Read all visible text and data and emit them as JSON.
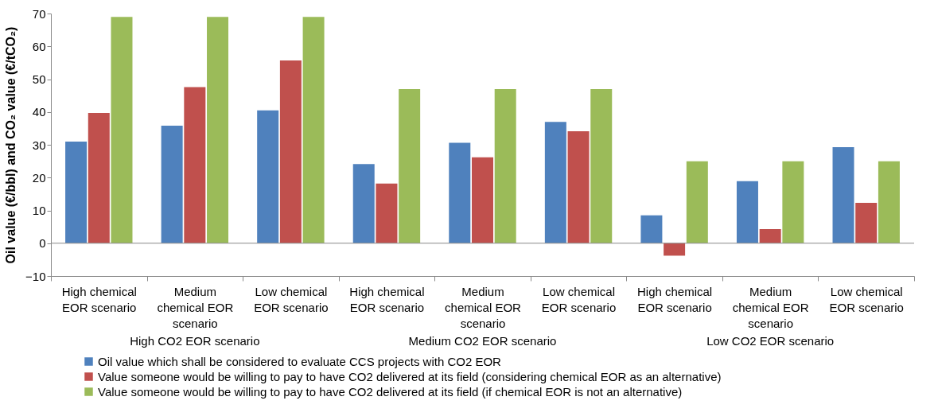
{
  "chart_data": {
    "type": "bar",
    "ylabel": "Oil value (€/bbl) and CO₂ value (€/tCO₂)",
    "categories": [
      "High chemical EOR scenario",
      "Medium chemical EOR scenario",
      "Low chemical EOR scenario",
      "High chemical EOR scenario",
      "Medium chemical EOR scenario",
      "Low chemical EOR scenario",
      "High chemical EOR scenario",
      "Medium chemical EOR scenario",
      "Low chemical EOR scenario"
    ],
    "annotations": [
      "High CO2 EOR scenario",
      "Medium CO2 EOR scenario",
      "Low CO2 EOR scenario"
    ],
    "series": [
      {
        "name": "Oil value which shall be considered to evaluate CCS projects with CO2 EOR",
        "color": "#4f81bd",
        "values": [
          31,
          35.8,
          40.5,
          24.1,
          30.6,
          37,
          8.5,
          18.9,
          29.3
        ]
      },
      {
        "name": "Value someone would be willing to pay to have CO2 delivered at its field (considering chemical EOR as an alternative)",
        "color": "#c0504d",
        "values": [
          39.7,
          47.6,
          55.7,
          18.2,
          26.2,
          34.1,
          -3.8,
          4.3,
          12.3
        ]
      },
      {
        "name": "Value someone would be willing to pay to have CO2 delivered at its field (if chemical EOR is not an alternative)",
        "color": "#9bbb59",
        "values": [
          69,
          69,
          69,
          47,
          47,
          47,
          25,
          25,
          25
        ]
      }
    ],
    "ylim": [
      -10,
      70
    ],
    "yticks": [
      -10,
      0,
      10,
      20,
      30,
      40,
      50,
      60,
      70
    ],
    "legend": "bottom"
  }
}
